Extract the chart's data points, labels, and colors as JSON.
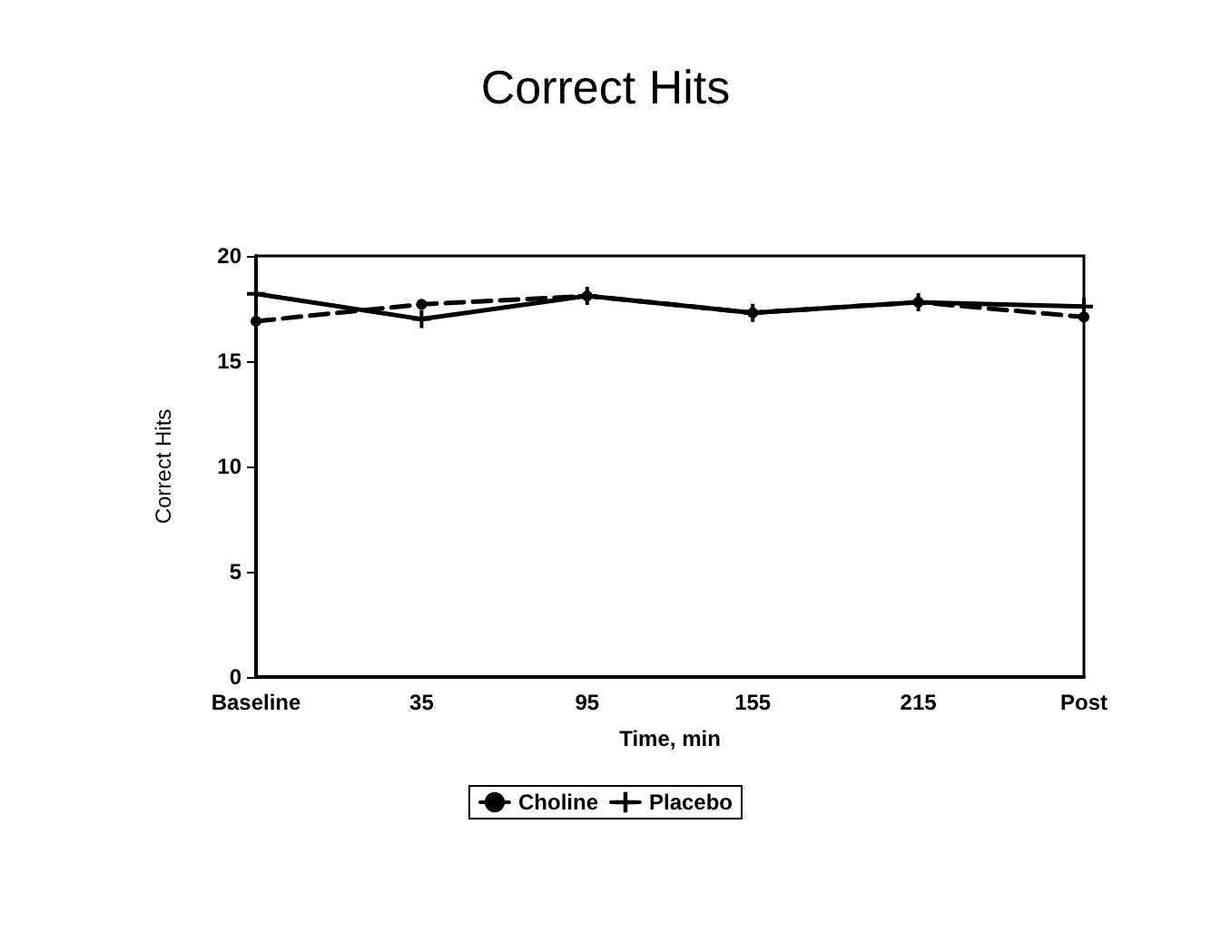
{
  "chart_data": {
    "type": "line",
    "title": "Correct Hits",
    "xlabel": "Time, min",
    "ylabel": "Correct Hits",
    "categories": [
      "Baseline",
      "35",
      "95",
      "155",
      "215",
      "Post"
    ],
    "series": [
      {
        "name": "Choline",
        "color": "#000000",
        "line_style": "dashed",
        "marker": "circle",
        "values": [
          16.9,
          17.7,
          18.1,
          17.3,
          17.8,
          17.1
        ]
      },
      {
        "name": "Placebo",
        "color": "#000000",
        "line_style": "solid",
        "marker": "cross",
        "values": [
          18.2,
          17.0,
          18.1,
          17.3,
          17.8,
          17.6
        ]
      }
    ],
    "ylim": [
      0,
      20
    ],
    "yticks": [
      0,
      5,
      10,
      15,
      20
    ],
    "grid": false,
    "legend": "bottom"
  }
}
